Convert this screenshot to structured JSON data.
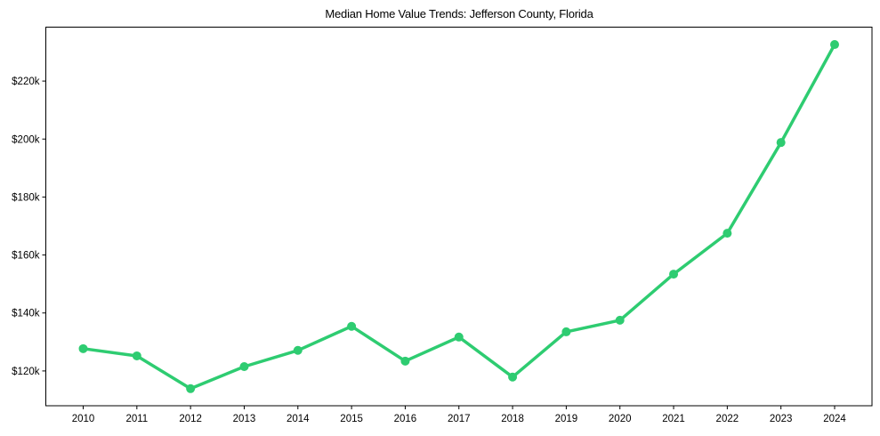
{
  "chart_data": {
    "type": "line",
    "title": "Median Home Value Trends: Jefferson County, Florida",
    "xlabel": "",
    "ylabel": "",
    "categories": [
      "2010",
      "2011",
      "2012",
      "2013",
      "2014",
      "2015",
      "2016",
      "2017",
      "2018",
      "2019",
      "2020",
      "2021",
      "2022",
      "2023",
      "2024"
    ],
    "series": [
      {
        "name": "Median Home Value",
        "color": "#2ecc71",
        "marker": "circle",
        "values": [
          127700,
          125200,
          113900,
          121500,
          127100,
          135400,
          123400,
          131700,
          117900,
          133500,
          137500,
          153400,
          167500,
          198800,
          232600
        ]
      }
    ],
    "yticks": [
      120000,
      140000,
      160000,
      180000,
      200000,
      220000
    ],
    "ytick_labels": [
      "$120k",
      "$140k",
      "$160k",
      "$180k",
      "$200k",
      "$220k"
    ],
    "ylim": [
      108000,
      238600
    ],
    "grid": false,
    "legend": null
  }
}
